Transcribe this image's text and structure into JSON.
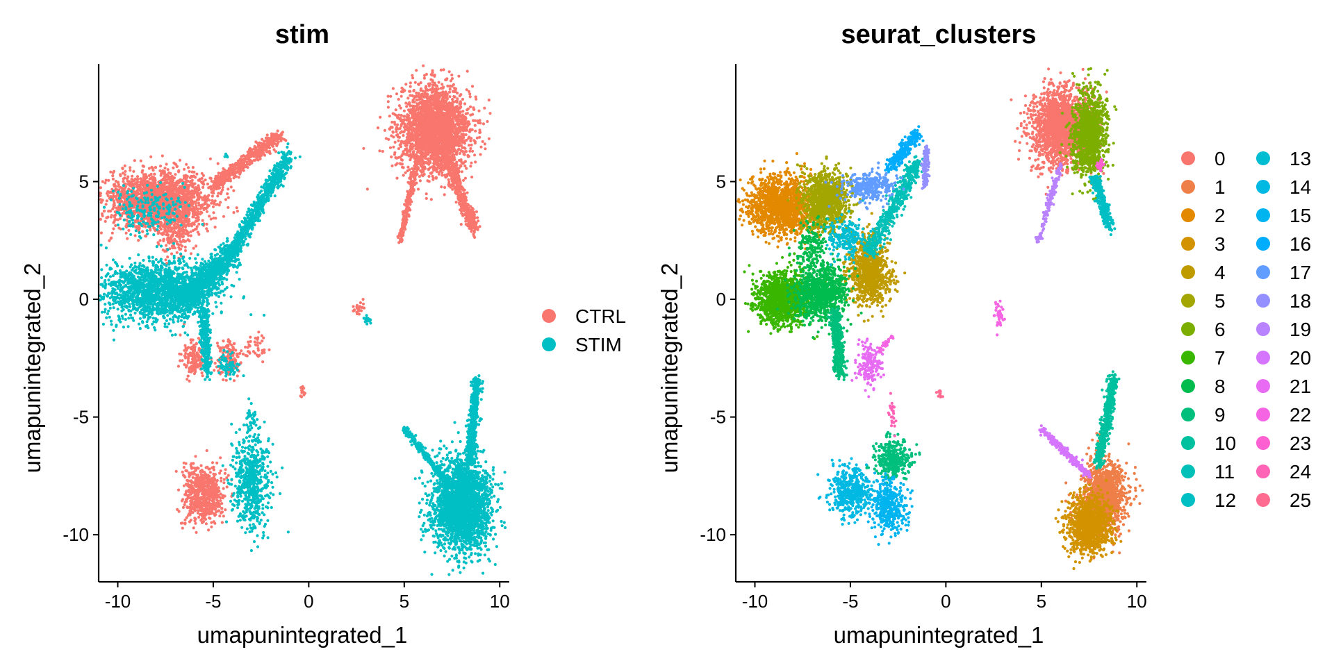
{
  "chart_data": [
    {
      "type": "scatter",
      "title": "stim",
      "xlabel": "umapunintegrated_1",
      "ylabel": "umapunintegrated_2",
      "xlim": [
        -11,
        10.5
      ],
      "ylim": [
        -12,
        10
      ],
      "x_ticks": [
        "-10",
        "-5",
        "0",
        "5",
        "10"
      ],
      "y_ticks": [
        "5",
        "0",
        "-5",
        "-10"
      ],
      "legend": {
        "placement": "right",
        "entries": [
          {
            "name": "CTRL",
            "color": "#F8766D"
          },
          {
            "name": "STIM",
            "color": "#00BFC4"
          }
        ]
      },
      "series": [
        {
          "name": "CTRL",
          "color": "#F8766D",
          "clusters": [
            {
              "cx": 6.6,
              "cy": 7.2,
              "sx": 0.9,
              "sy": 0.9,
              "n": 2600
            },
            {
              "x1": 5.7,
              "y1": 6.0,
              "x2": 4.8,
              "y2": 2.5,
              "w": 0.15,
              "n": 250
            },
            {
              "x1": 7.2,
              "y1": 6.0,
              "x2": 8.7,
              "y2": 3.0,
              "w": 0.3,
              "n": 500
            },
            {
              "cx": -7.8,
              "cy": 4.2,
              "sx": 1.3,
              "sy": 0.6,
              "n": 2000
            },
            {
              "x1": -5.0,
              "y1": 4.8,
              "x2": -1.5,
              "y2": 7.0,
              "w": 0.3,
              "n": 500
            },
            {
              "cx": -7.0,
              "cy": 2.8,
              "sx": 0.5,
              "sy": 0.5,
              "n": 200
            },
            {
              "cx": -6.0,
              "cy": -2.5,
              "sx": 0.3,
              "sy": 0.4,
              "n": 150
            },
            {
              "cx": -4.2,
              "cy": -2.5,
              "sx": 0.3,
              "sy": 0.4,
              "n": 130
            },
            {
              "cx": -2.8,
              "cy": -2.0,
              "sx": 0.3,
              "sy": 0.3,
              "n": 40
            },
            {
              "cx": -5.5,
              "cy": -8.3,
              "sx": 0.5,
              "sy": 0.6,
              "n": 650
            },
            {
              "cx": 2.6,
              "cy": -0.4,
              "sx": 0.12,
              "sy": 0.12,
              "n": 25
            },
            {
              "cx": -0.3,
              "cy": -4.0,
              "sx": 0.08,
              "sy": 0.12,
              "n": 12
            }
          ]
        },
        {
          "name": "STIM",
          "color": "#00BFC4",
          "clusters": [
            {
              "cx": 8.0,
              "cy": -8.8,
              "sx": 0.75,
              "sy": 0.95,
              "n": 2600
            },
            {
              "x1": 8.4,
              "y1": -7.0,
              "x2": 8.8,
              "y2": -3.3,
              "w": 0.25,
              "n": 500
            },
            {
              "x1": 5.0,
              "y1": -5.5,
              "x2": 7.5,
              "y2": -8.0,
              "w": 0.15,
              "n": 300
            },
            {
              "cx": -7.8,
              "cy": 0.3,
              "sx": 1.4,
              "sy": 0.6,
              "n": 1800
            },
            {
              "x1": -6.5,
              "y1": 0.0,
              "x2": -4.0,
              "y2": 2.0,
              "w": 0.55,
              "n": 900
            },
            {
              "x1": -4.0,
              "y1": 2.0,
              "x2": -1.0,
              "y2": 6.2,
              "w": 0.35,
              "n": 700
            },
            {
              "x1": -5.5,
              "y1": -0.5,
              "x2": -5.3,
              "y2": -3.2,
              "w": 0.25,
              "n": 300
            },
            {
              "cx": -8.5,
              "cy": 3.8,
              "sx": 1.0,
              "sy": 0.5,
              "n": 200
            },
            {
              "cx": -3.0,
              "cy": -7.8,
              "sx": 0.5,
              "sy": 1.0,
              "n": 600
            },
            {
              "cx": -4.2,
              "cy": -2.8,
              "sx": 0.25,
              "sy": 0.3,
              "n": 60
            },
            {
              "cx": 3.1,
              "cy": -0.9,
              "sx": 0.1,
              "sy": 0.1,
              "n": 20
            },
            {
              "cx": -4.3,
              "cy": 6.1,
              "sx": 0.05,
              "sy": 0.05,
              "n": 6
            },
            {
              "cx": -3.0,
              "cy": -5.0,
              "sx": 0.15,
              "sy": 0.3,
              "n": 30
            }
          ]
        }
      ]
    },
    {
      "type": "scatter",
      "title": "seurat_clusters",
      "xlabel": "umapunintegrated_1",
      "ylabel": "umapunintegrated_2",
      "xlim": [
        -11,
        10.5
      ],
      "ylim": [
        -12,
        10
      ],
      "x_ticks": [
        "-10",
        "-5",
        "0",
        "5",
        "10"
      ],
      "y_ticks": [
        "5",
        "0",
        "-5",
        "-10"
      ],
      "legend": {
        "placement": "right",
        "columns": 2,
        "entries": [
          {
            "name": "0",
            "color": "#F8766D"
          },
          {
            "name": "1",
            "color": "#EF7F49"
          },
          {
            "name": "2",
            "color": "#E38900"
          },
          {
            "name": "3",
            "color": "#D39200"
          },
          {
            "name": "4",
            "color": "#C09B00"
          },
          {
            "name": "5",
            "color": "#A3A500"
          },
          {
            "name": "6",
            "color": "#7CAE00"
          },
          {
            "name": "7",
            "color": "#39B600"
          },
          {
            "name": "8",
            "color": "#00BB4E"
          },
          {
            "name": "9",
            "color": "#00BF7D"
          },
          {
            "name": "10",
            "color": "#00C19F"
          },
          {
            "name": "11",
            "color": "#00C0B8"
          },
          {
            "name": "12",
            "color": "#00BFC4"
          },
          {
            "name": "13",
            "color": "#00BDD2"
          },
          {
            "name": "14",
            "color": "#00B9E3"
          },
          {
            "name": "15",
            "color": "#00B4F0"
          },
          {
            "name": "16",
            "color": "#00ACFC"
          },
          {
            "name": "17",
            "color": "#619CFF"
          },
          {
            "name": "18",
            "color": "#9590FF"
          },
          {
            "name": "19",
            "color": "#B983FF"
          },
          {
            "name": "20",
            "color": "#D575FE"
          },
          {
            "name": "21",
            "color": "#E76BF3"
          },
          {
            "name": "22",
            "color": "#F564E3"
          },
          {
            "name": "23",
            "color": "#FD61D1"
          },
          {
            "name": "24",
            "color": "#FF63B6"
          },
          {
            "name": "25",
            "color": "#FF6C91"
          }
        ]
      },
      "series": [
        {
          "name": "0",
          "color": "#F8766D",
          "clusters": [
            {
              "cx": 6.0,
              "cy": 7.3,
              "sx": 0.75,
              "sy": 0.8,
              "n": 1800
            }
          ]
        },
        {
          "name": "1",
          "color": "#EF7F49",
          "clusters": [
            {
              "cx": 8.3,
              "cy": -8.3,
              "sx": 0.55,
              "sy": 0.7,
              "n": 1300
            }
          ]
        },
        {
          "name": "2",
          "color": "#E38900",
          "clusters": [
            {
              "cx": -8.6,
              "cy": 4.0,
              "sx": 0.9,
              "sy": 0.6,
              "n": 1500
            }
          ]
        },
        {
          "name": "3",
          "color": "#D39200",
          "clusters": [
            {
              "cx": 7.5,
              "cy": -9.6,
              "sx": 0.55,
              "sy": 0.6,
              "n": 1100
            }
          ]
        },
        {
          "name": "4",
          "color": "#C09B00",
          "clusters": [
            {
              "cx": -4.0,
              "cy": 1.2,
              "sx": 0.55,
              "sy": 0.7,
              "n": 900
            }
          ]
        },
        {
          "name": "5",
          "color": "#A3A500",
          "clusters": [
            {
              "cx": -6.3,
              "cy": 4.2,
              "sx": 0.6,
              "sy": 0.6,
              "n": 1000
            }
          ]
        },
        {
          "name": "6",
          "color": "#7CAE00",
          "clusters": [
            {
              "cx": 7.5,
              "cy": 7.0,
              "sx": 0.45,
              "sy": 0.9,
              "n": 1100
            }
          ]
        },
        {
          "name": "7",
          "color": "#39B600",
          "clusters": [
            {
              "cx": -8.5,
              "cy": 0.0,
              "sx": 0.7,
              "sy": 0.55,
              "n": 1200
            }
          ]
        },
        {
          "name": "8",
          "color": "#00BB4E",
          "clusters": [
            {
              "cx": -6.5,
              "cy": 0.3,
              "sx": 0.7,
              "sy": 0.6,
              "n": 900
            },
            {
              "cx": -7.0,
              "cy": 2.3,
              "sx": 0.4,
              "sy": 0.5,
              "n": 150
            }
          ]
        },
        {
          "name": "9",
          "color": "#00BF7D",
          "clusters": [
            {
              "x1": -5.8,
              "y1": -0.5,
              "x2": -5.5,
              "y2": -3.2,
              "w": 0.3,
              "n": 450
            },
            {
              "cx": -2.8,
              "cy": -6.8,
              "sx": 0.5,
              "sy": 0.4,
              "n": 350
            }
          ]
        },
        {
          "name": "10",
          "color": "#00C19F",
          "clusters": [
            {
              "x1": 8.0,
              "y1": -7.0,
              "x2": 8.8,
              "y2": -3.3,
              "w": 0.25,
              "n": 550
            }
          ]
        },
        {
          "name": "11",
          "color": "#00C0B8",
          "clusters": [
            {
              "x1": -4.0,
              "y1": 2.0,
              "x2": -1.5,
              "y2": 5.8,
              "w": 0.4,
              "n": 500
            }
          ]
        },
        {
          "name": "12",
          "color": "#00BFC4",
          "clusters": [
            {
              "x1": 7.8,
              "y1": 5.2,
              "x2": 8.6,
              "y2": 3.0,
              "w": 0.25,
              "n": 300
            }
          ]
        },
        {
          "name": "13",
          "color": "#00BDD2",
          "clusters": [
            {
              "cx": -5.2,
              "cy": 2.6,
              "sx": 0.5,
              "sy": 0.4,
              "n": 200
            }
          ]
        },
        {
          "name": "14",
          "color": "#00B9E3",
          "clusters": [
            {
              "cx": -5.0,
              "cy": -8.2,
              "sx": 0.5,
              "sy": 0.5,
              "n": 450
            }
          ]
        },
        {
          "name": "15",
          "color": "#00B4F0",
          "clusters": [
            {
              "cx": -3.0,
              "cy": -8.8,
              "sx": 0.45,
              "sy": 0.55,
              "n": 400
            }
          ]
        },
        {
          "name": "16",
          "color": "#00ACFC",
          "clusters": [
            {
              "x1": -3.0,
              "y1": 5.5,
              "x2": -1.5,
              "y2": 7.0,
              "w": 0.3,
              "n": 250
            }
          ]
        },
        {
          "name": "17",
          "color": "#619CFF",
          "clusters": [
            {
              "cx": -4.0,
              "cy": 4.8,
              "sx": 0.7,
              "sy": 0.3,
              "n": 300
            }
          ]
        },
        {
          "name": "18",
          "color": "#9590FF",
          "clusters": [
            {
              "x1": -1.0,
              "y1": 6.5,
              "x2": -1.1,
              "y2": 4.8,
              "w": 0.15,
              "n": 130
            }
          ]
        },
        {
          "name": "19",
          "color": "#B983FF",
          "clusters": [
            {
              "x1": 6.0,
              "y1": 5.7,
              "x2": 4.8,
              "y2": 2.4,
              "w": 0.15,
              "n": 150
            }
          ]
        },
        {
          "name": "20",
          "color": "#D575FE",
          "clusters": [
            {
              "x1": 5.0,
              "y1": -5.5,
              "x2": 7.5,
              "y2": -7.5,
              "w": 0.15,
              "n": 250
            }
          ]
        },
        {
          "name": "21",
          "color": "#E76BF3",
          "clusters": [
            {
              "cx": -4.0,
              "cy": -2.8,
              "sx": 0.3,
              "sy": 0.4,
              "n": 180
            }
          ]
        },
        {
          "name": "22",
          "color": "#F564E3",
          "clusters": [
            {
              "x1": -3.5,
              "y1": -2.2,
              "x2": -2.8,
              "y2": -1.6,
              "w": 0.1,
              "n": 30
            },
            {
              "cx": 2.8,
              "cy": -0.6,
              "sx": 0.12,
              "sy": 0.25,
              "n": 40
            }
          ]
        },
        {
          "name": "23",
          "color": "#FD61D1",
          "clusters": [
            {
              "cx": 8.1,
              "cy": 5.7,
              "sx": 0.1,
              "sy": 0.15,
              "n": 25
            }
          ]
        },
        {
          "name": "24",
          "color": "#FF63B6",
          "clusters": [
            {
              "cx": -2.8,
              "cy": -5.0,
              "sx": 0.1,
              "sy": 0.3,
              "n": 25
            }
          ]
        },
        {
          "name": "25",
          "color": "#FF6C91",
          "clusters": [
            {
              "cx": -0.3,
              "cy": -4.0,
              "sx": 0.1,
              "sy": 0.1,
              "n": 15
            }
          ]
        }
      ]
    }
  ]
}
